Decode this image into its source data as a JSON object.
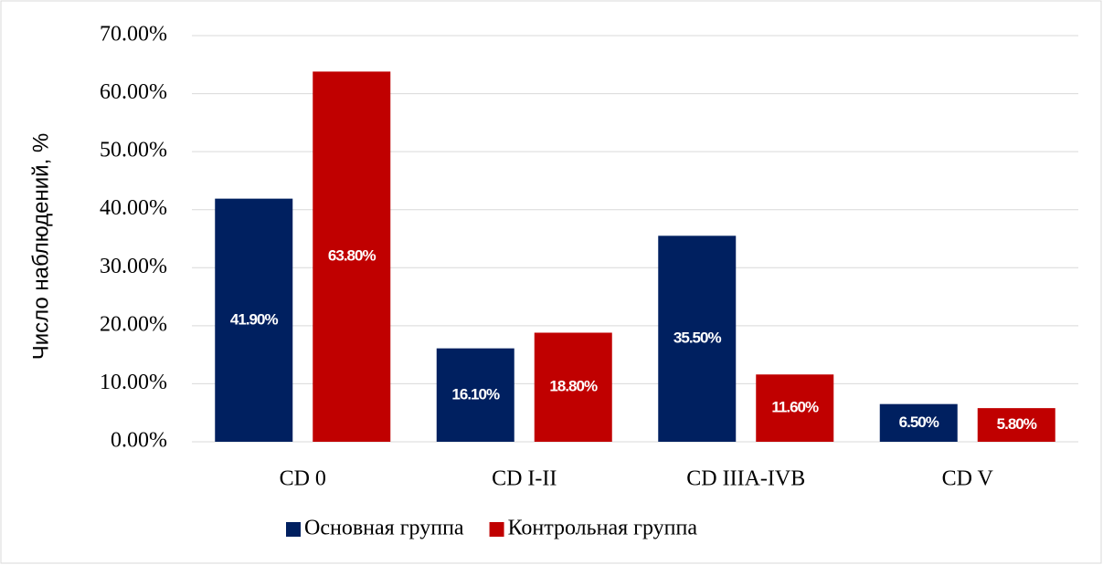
{
  "chart_data": {
    "type": "bar",
    "ylabel": "Число наблюдений, %",
    "categories": [
      "CD 0",
      "CD I-II",
      "CD IIIA-IVB",
      "CD V"
    ],
    "series": [
      {
        "name": "Основная группа",
        "color": "#002060",
        "values": [
          41.9,
          16.1,
          35.5,
          6.5
        ],
        "value_labels": [
          "41.90%",
          "16.10%",
          "35.50%",
          "6.50%"
        ]
      },
      {
        "name": "Контрольная группа",
        "color": "#c00000",
        "values": [
          63.8,
          18.8,
          11.6,
          5.8
        ],
        "value_labels": [
          "63.80%",
          "18.80%",
          "11.60%",
          "5.80%"
        ]
      }
    ],
    "ylim": [
      0,
      70
    ],
    "yticks": [
      {
        "value": 0,
        "label": "0.00%"
      },
      {
        "value": 10,
        "label": "10.00%"
      },
      {
        "value": 20,
        "label": "20.00%"
      },
      {
        "value": 30,
        "label": "30.00%"
      },
      {
        "value": 40,
        "label": "40.00%"
      },
      {
        "value": 50,
        "label": "50.00%"
      },
      {
        "value": 60,
        "label": "60.00%"
      },
      {
        "value": 70,
        "label": "70.00%"
      }
    ],
    "grid": true,
    "legend": "bottom"
  }
}
